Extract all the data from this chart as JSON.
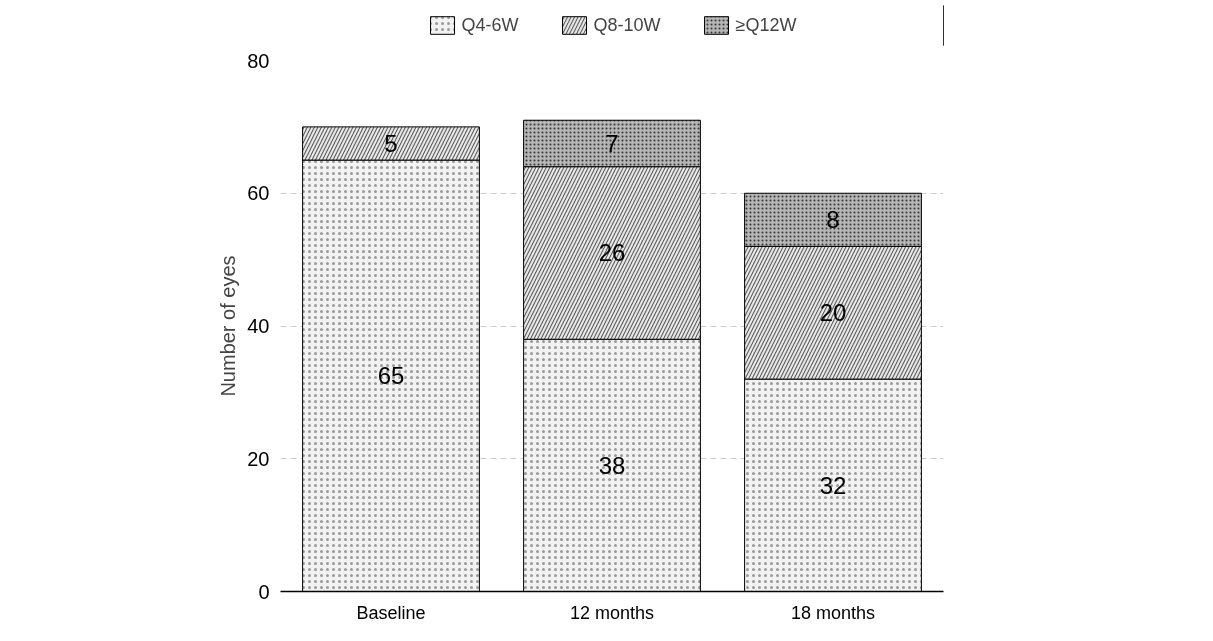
{
  "chart_data": {
    "type": "bar",
    "stacked": true,
    "ylabel": "Number of eyes",
    "categories": [
      "Baseline",
      "12 months",
      "18 months"
    ],
    "series": [
      {
        "name": "Q4-6W",
        "color": "#f2f2f2",
        "values": [
          65,
          38,
          32
        ]
      },
      {
        "name": "Q8-10W",
        "color": "#e6e6e6",
        "values": [
          5,
          26,
          20
        ]
      },
      {
        "name": "≥Q12W",
        "color": "#b5b5b5",
        "values": [
          null,
          7,
          8
        ]
      }
    ],
    "ylim": [
      0,
      80
    ],
    "yticks": [
      0,
      20,
      40,
      60,
      80
    ],
    "grid": "y",
    "legend": "top",
    "data_labels": true
  }
}
